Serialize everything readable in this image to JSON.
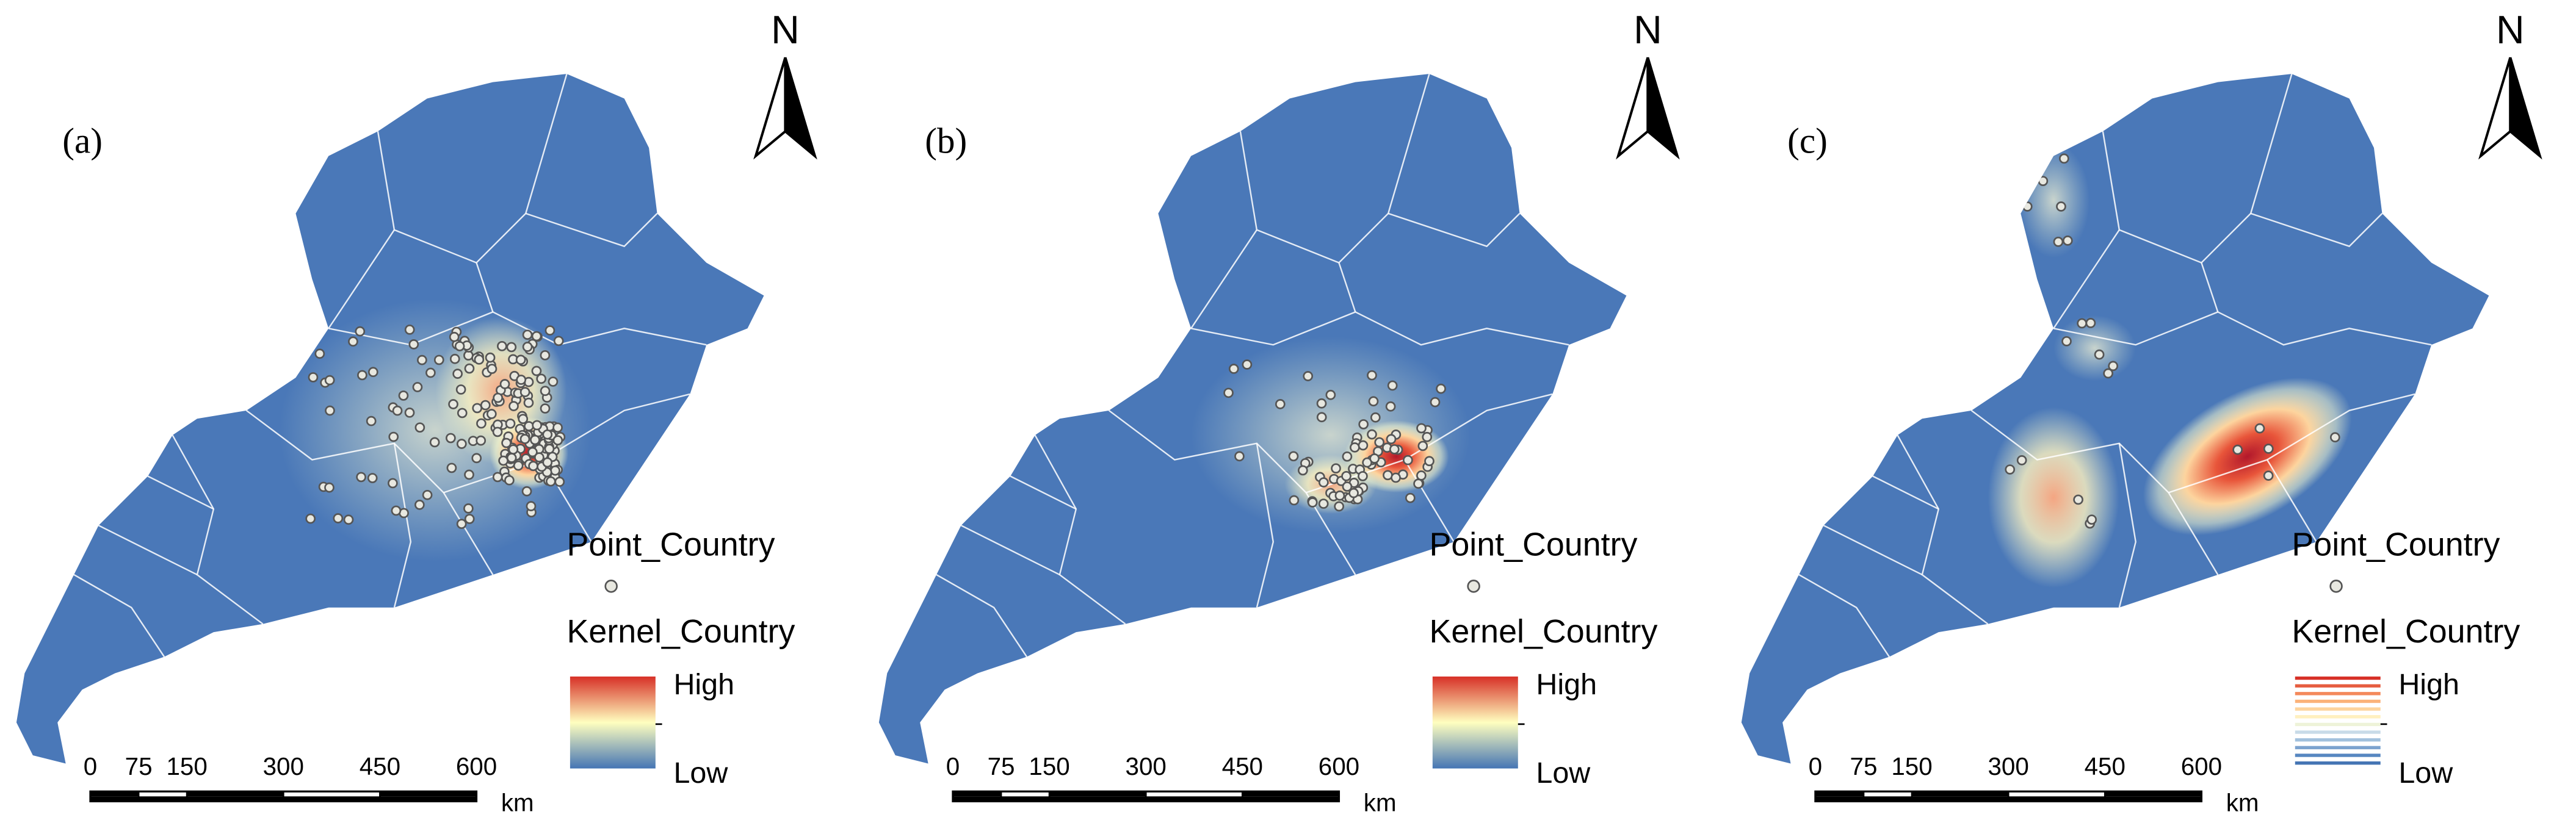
{
  "panels": [
    {
      "label": "(a)",
      "north": "N",
      "legend": {
        "point_title": "Point_Country",
        "kernel_title": "Kernel_Country",
        "high": "High",
        "low": "Low"
      },
      "scale": {
        "ticks": [
          0,
          75,
          150,
          300,
          450,
          600
        ],
        "unit": "km"
      }
    },
    {
      "label": "(b)",
      "north": "N",
      "legend": {
        "point_title": "Point_Country",
        "kernel_title": "Kernel_Country",
        "high": "High",
        "low": "Low"
      },
      "scale": {
        "ticks": [
          0,
          75,
          150,
          300,
          450,
          600
        ],
        "unit": "km"
      }
    },
    {
      "label": "(c)",
      "north": "N",
      "legend": {
        "point_title": "Point_Country",
        "kernel_title": "Kernel_Country",
        "high": "High",
        "low": "Low"
      },
      "scale": {
        "ticks": [
          0,
          75,
          150,
          300,
          450,
          600
        ],
        "unit": "km"
      }
    }
  ]
}
